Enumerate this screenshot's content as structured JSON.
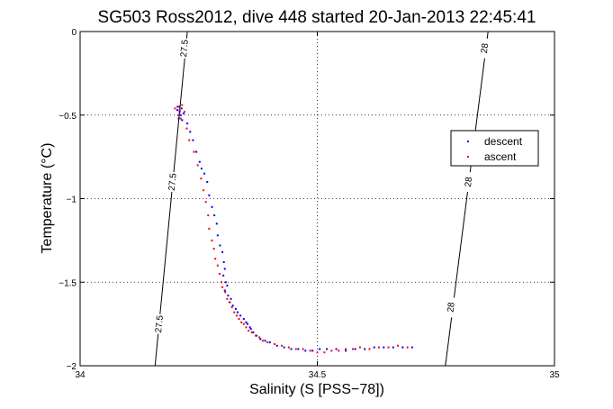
{
  "chart_data": {
    "type": "scatter",
    "title": "SG503 Ross2012, dive 448 started 20-Jan-2013 22:45:41",
    "xlabel": "Salinity (S [PSS−78])",
    "ylabel": "Temperature (°C)",
    "xlim": [
      34,
      35
    ],
    "ylim": [
      -2,
      0
    ],
    "xticks": [
      34,
      34.5,
      35
    ],
    "xtick_labels": [
      "34",
      "34.5",
      "35"
    ],
    "yticks": [
      0,
      -0.5,
      -1,
      -1.5,
      -2
    ],
    "ytick_labels": [
      "0",
      "−0.5",
      "−1",
      "−1.5",
      "−2"
    ],
    "grid": true,
    "grid_style": "dotted",
    "legend_position": "right",
    "isopycnals": [
      {
        "value": "27.5",
        "points": [
          [
            34.226,
            0
          ],
          [
            34.158,
            -2
          ]
        ],
        "labels": [
          {
            "text": "27.5",
            "s": 34.219,
            "t": -0.1
          },
          {
            "text": "27.5",
            "s": 34.194,
            "t": -0.9
          },
          {
            "text": "27.5",
            "s": 34.166,
            "t": -1.75
          }
        ]
      },
      {
        "value": "28",
        "points": [
          [
            34.86,
            0
          ],
          [
            34.77,
            -2
          ]
        ],
        "labels": [
          {
            "text": "28",
            "s": 34.852,
            "t": -0.1
          },
          {
            "text": "28",
            "s": 34.818,
            "t": -0.9
          },
          {
            "text": "28",
            "s": 34.781,
            "t": -1.65
          }
        ]
      }
    ],
    "series": [
      {
        "name": "descent",
        "color": "#0000ff",
        "x": [
          34.205,
          34.21,
          34.212,
          34.208,
          34.214,
          34.218,
          34.209,
          34.215,
          34.226,
          34.232,
          34.238,
          34.245,
          34.252,
          34.256,
          34.262,
          34.268,
          34.272,
          34.278,
          34.283,
          34.288,
          34.29,
          34.295,
          34.3,
          34.303,
          34.305,
          34.302,
          34.307,
          34.31,
          34.305,
          34.312,
          34.318,
          34.315,
          34.322,
          34.328,
          34.332,
          34.338,
          34.345,
          34.35,
          34.353,
          34.358,
          34.36,
          34.365,
          34.372,
          34.38,
          34.39,
          34.4,
          34.415,
          34.43,
          34.445,
          34.46,
          34.475,
          34.49,
          34.505,
          34.52,
          34.54,
          34.56,
          34.58,
          34.6,
          34.62,
          34.64,
          34.66,
          34.68,
          34.7
        ],
        "y": [
          -0.47,
          -0.48,
          -0.5,
          -0.52,
          -0.46,
          -0.49,
          -0.45,
          -0.53,
          -0.55,
          -0.6,
          -0.65,
          -0.72,
          -0.78,
          -0.82,
          -0.85,
          -0.9,
          -0.98,
          -1.05,
          -1.1,
          -1.15,
          -1.22,
          -1.28,
          -1.32,
          -1.38,
          -1.42,
          -1.46,
          -1.5,
          -1.52,
          -1.55,
          -1.58,
          -1.6,
          -1.62,
          -1.64,
          -1.66,
          -1.68,
          -1.7,
          -1.72,
          -1.74,
          -1.75,
          -1.77,
          -1.78,
          -1.8,
          -1.82,
          -1.84,
          -1.85,
          -1.86,
          -1.88,
          -1.89,
          -1.9,
          -1.9,
          -1.91,
          -1.91,
          -1.9,
          -1.9,
          -1.9,
          -1.91,
          -1.9,
          -1.9,
          -1.89,
          -1.89,
          -1.89,
          -1.89,
          -1.89
        ]
      },
      {
        "name": "ascent",
        "color": "#ff0000",
        "x": [
          34.2,
          34.205,
          34.21,
          34.215,
          34.22,
          34.207,
          34.212,
          34.225,
          34.23,
          34.24,
          34.248,
          34.255,
          34.26,
          34.265,
          34.27,
          34.272,
          34.278,
          34.282,
          34.285,
          34.29,
          34.294,
          34.298,
          34.3,
          34.306,
          34.31,
          34.316,
          34.32,
          34.325,
          34.33,
          34.335,
          34.34,
          34.345,
          34.35,
          34.355,
          34.362,
          34.37,
          34.378,
          34.385,
          34.395,
          34.41,
          34.425,
          34.44,
          34.455,
          34.47,
          34.485,
          34.5,
          34.515,
          34.53,
          34.545,
          34.56,
          34.575,
          34.59,
          34.61,
          34.63,
          34.65,
          34.67,
          34.69
        ],
        "y": [
          -0.46,
          -0.45,
          -0.47,
          -0.44,
          -0.48,
          -0.5,
          -0.52,
          -0.58,
          -0.65,
          -0.72,
          -0.8,
          -0.88,
          -0.95,
          -1.02,
          -1.1,
          -1.18,
          -1.25,
          -1.3,
          -1.36,
          -1.4,
          -1.45,
          -1.5,
          -1.53,
          -1.56,
          -1.6,
          -1.62,
          -1.65,
          -1.68,
          -1.7,
          -1.72,
          -1.74,
          -1.75,
          -1.77,
          -1.79,
          -1.8,
          -1.82,
          -1.83,
          -1.85,
          -1.86,
          -1.87,
          -1.88,
          -1.89,
          -1.9,
          -1.9,
          -1.91,
          -1.92,
          -1.92,
          -1.91,
          -1.91,
          -1.9,
          -1.9,
          -1.89,
          -1.9,
          -1.89,
          -1.89,
          -1.88,
          -1.89
        ]
      }
    ]
  }
}
